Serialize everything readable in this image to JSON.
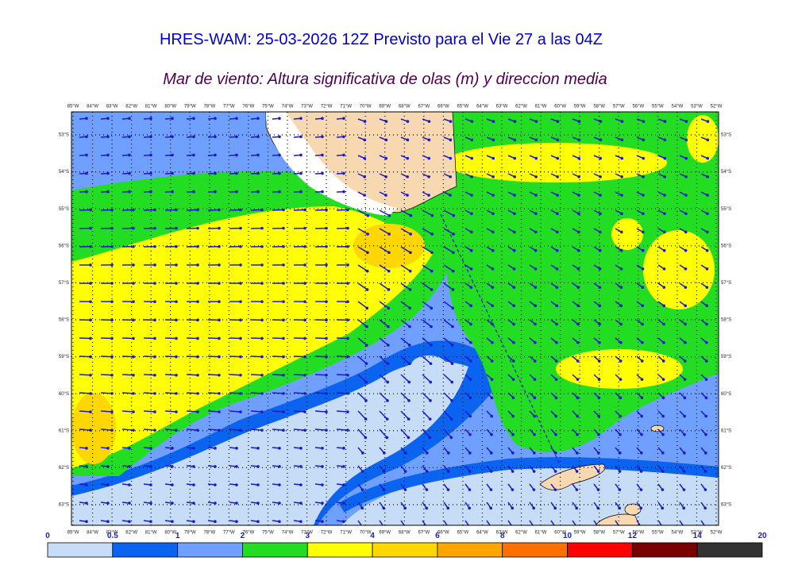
{
  "header": {
    "title": "HRES-WAM: 25-03-2026 12Z Previsto para el Vie 27 a las 04Z",
    "subtitle": "Mar de viento: Altura significativa de olas (m) y direccion media"
  },
  "map": {
    "longitudes": [
      "85°W",
      "84°W",
      "83°W",
      "82°W",
      "81°W",
      "80°W",
      "79°W",
      "78°W",
      "77°W",
      "76°W",
      "75°W",
      "74°W",
      "73°W",
      "72°W",
      "71°W",
      "70°W",
      "69°W",
      "68°W",
      "67°W",
      "66°W",
      "65°W",
      "64°W",
      "63°W",
      "62°W",
      "61°W",
      "60°W",
      "59°W",
      "58°W",
      "57°W",
      "56°W",
      "55°W",
      "54°W",
      "53°W",
      "52°W"
    ],
    "latitudes": [
      "53°S",
      "54°S",
      "55°S",
      "56°S",
      "57°S",
      "58°S",
      "59°S",
      "60°S",
      "61°S",
      "62°S",
      "63°S"
    ]
  },
  "legend": {
    "labels": [
      "0",
      "0.5",
      "1",
      "2",
      "3",
      "4",
      "6",
      "8",
      "10",
      "12",
      "14",
      "20"
    ],
    "colors": [
      "#c6dcf7",
      "#0a64f0",
      "#6fa0ff",
      "#22dd22",
      "#ffff00",
      "#ffd700",
      "#ffa500",
      "#ff7000",
      "#ff0000",
      "#7a0000",
      "#333333"
    ]
  }
}
